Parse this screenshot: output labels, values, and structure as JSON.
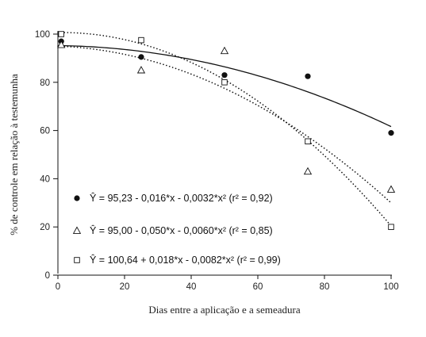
{
  "chart_data": {
    "type": "scatter",
    "xlabel": "Dias entre a aplicação e a semeadura",
    "ylabel": "% de controle em relação à testemunha",
    "xlim": [
      0,
      100
    ],
    "ylim": [
      0,
      100
    ],
    "xticks": [
      0,
      20,
      40,
      60,
      80,
      100
    ],
    "yticks": [
      0,
      20,
      40,
      60,
      80,
      100
    ],
    "grid": false,
    "legend_position": "bottom-left",
    "series": [
      {
        "marker": "filled-circle",
        "line_style": "solid",
        "x": [
          1,
          25,
          50,
          75,
          100
        ],
        "y": [
          97,
          90.5,
          83,
          82.5,
          59
        ],
        "fit": {
          "a": 95.23,
          "b": -0.016,
          "c": -0.0032
        },
        "equation": "Ŷ = 95,23 - 0,016*x - 0,0032*x²  (r² = 0,92)"
      },
      {
        "marker": "open-triangle",
        "line_style": "dotted",
        "x": [
          1,
          25,
          50,
          75,
          100
        ],
        "y": [
          95.5,
          85,
          93,
          43,
          35.5
        ],
        "fit": {
          "a": 95.0,
          "b": -0.05,
          "c": -0.006
        },
        "equation": "Ŷ = 95,00 - 0,050*x - 0,0060*x²  (r² = 0,85)"
      },
      {
        "marker": "open-square",
        "line_style": "dotted",
        "x": [
          1,
          25,
          50,
          75,
          100
        ],
        "y": [
          100,
          97.5,
          80,
          55.5,
          20
        ],
        "fit": {
          "a": 100.64,
          "b": 0.018,
          "c": -0.0082
        },
        "equation": "Ŷ = 100,64 + 0,018*x - 0,0082*x²  (r² = 0,99)"
      }
    ]
  },
  "colors": {
    "ink": "#111111"
  }
}
